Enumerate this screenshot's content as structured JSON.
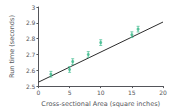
{
  "chart_data": {
    "type": "scatter",
    "xlabel": "Cross-sectional Area (square inches)",
    "ylabel": "Run time (seconds)",
    "xlim": [
      0,
      20
    ],
    "ylim": [
      2.5,
      3.0
    ],
    "xticks": [
      0,
      5,
      10,
      15,
      20
    ],
    "yticks": [
      2.5,
      2.6,
      2.7,
      2.8,
      2.9,
      3.0
    ],
    "grid": false,
    "series": [
      {
        "type": "scatter",
        "color": "#3dba8c",
        "x": [
          2,
          5,
          5.5,
          8,
          10,
          15,
          16
        ],
        "values": [
          2.575,
          2.605,
          2.655,
          2.7,
          2.775,
          2.825,
          2.86
        ],
        "yerr": [
          0.018,
          0.018,
          0.018,
          0.018,
          0.018,
          0.018,
          0.018
        ]
      },
      {
        "type": "line",
        "color": "#2c2c2c",
        "x": [
          0,
          20
        ],
        "values": [
          2.525,
          2.905
        ]
      }
    ]
  }
}
